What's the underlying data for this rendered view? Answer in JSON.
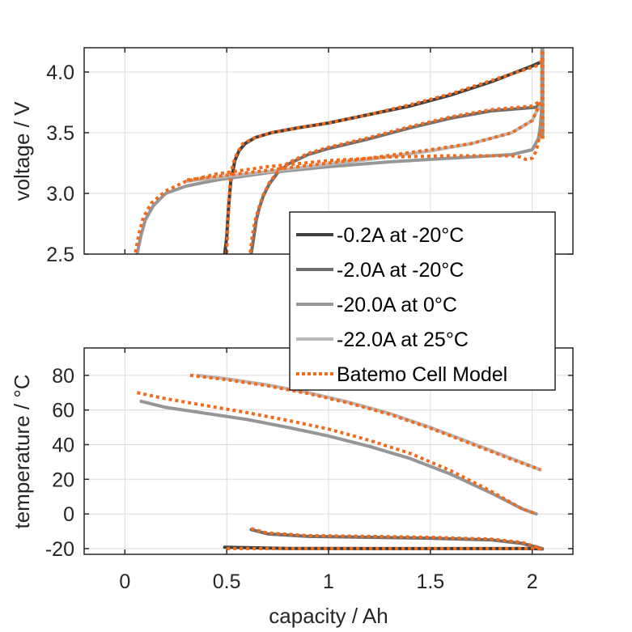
{
  "chart_data": [
    {
      "id": "voltage",
      "type": "line",
      "title": "",
      "xlabel": "",
      "ylabel": "voltage / V",
      "xlim": [
        -0.2,
        2.2
      ],
      "ylim": [
        2.5,
        4.2
      ],
      "xticks": [
        0,
        0.5,
        1,
        1.5,
        2
      ],
      "xtick_labels": [
        "",
        "",
        "",
        "",
        ""
      ],
      "yticks": [
        2.5,
        3.0,
        3.5,
        4.0
      ],
      "ytick_labels": [
        "2.5",
        "3.0",
        "3.5",
        "4.0"
      ],
      "grid": true,
      "series": [
        {
          "name": "-0.2A at -20°C",
          "role": "measured",
          "color": "#404040",
          "x": [
            2.04,
            2.0,
            1.8,
            1.6,
            1.4,
            1.2,
            1.0,
            0.85,
            0.72,
            0.64,
            0.59,
            0.56,
            0.54,
            0.53,
            0.52,
            0.515,
            0.51,
            0.505,
            0.5,
            0.49
          ],
          "y": [
            4.08,
            4.05,
            3.92,
            3.81,
            3.72,
            3.65,
            3.58,
            3.54,
            3.5,
            3.46,
            3.41,
            3.35,
            3.27,
            3.18,
            3.1,
            3.0,
            2.9,
            2.78,
            2.64,
            2.5
          ]
        },
        {
          "name": "-2.0A at -20°C",
          "role": "measured",
          "color": "#6e6e6e",
          "x": [
            2.04,
            2.02,
            1.95,
            1.8,
            1.6,
            1.4,
            1.2,
            1.0,
            0.9,
            0.8,
            0.75,
            0.71,
            0.68,
            0.66,
            0.645,
            0.635,
            0.62
          ],
          "y": [
            3.74,
            3.71,
            3.7,
            3.68,
            3.62,
            3.54,
            3.45,
            3.37,
            3.32,
            3.24,
            3.17,
            3.08,
            2.98,
            2.88,
            2.78,
            2.66,
            2.5
          ]
        },
        {
          "name": "-20.0A at 0°C",
          "role": "measured",
          "color": "#969696",
          "x": [
            2.05,
            2.05,
            2.04,
            2.03,
            2.0,
            1.9,
            1.6,
            1.3,
            1.0,
            0.7,
            0.45,
            0.3,
            0.2,
            0.14,
            0.1,
            0.08,
            0.07,
            0.06
          ],
          "y": [
            4.2,
            3.78,
            3.55,
            3.45,
            3.36,
            3.32,
            3.29,
            3.26,
            3.22,
            3.17,
            3.11,
            3.06,
            3.0,
            2.9,
            2.78,
            2.66,
            2.58,
            2.5
          ]
        },
        {
          "name": "-22.0A at 25°C",
          "role": "measured",
          "color": "#b9b9b9",
          "x": [
            2.05,
            2.04,
            2.02,
            2.0,
            1.9,
            1.7,
            1.5,
            1.2,
            0.9,
            0.7,
            0.5,
            0.3
          ],
          "y": [
            3.78,
            3.72,
            3.67,
            3.6,
            3.5,
            3.41,
            3.35,
            3.28,
            3.22,
            3.18,
            3.14,
            3.1
          ]
        },
        {
          "name": "Batemo Cell Model",
          "role": "model",
          "color": "#f26a1b",
          "dotted": true,
          "x": [
            2.05,
            2.05
          ],
          "y": [
            3.45,
            4.2
          ]
        }
      ]
    },
    {
      "id": "temperature",
      "type": "line",
      "title": "",
      "xlabel": "capacity / Ah",
      "ylabel": "temperature / °C",
      "xlim": [
        -0.2,
        2.2
      ],
      "ylim": [
        -23.3,
        95.8
      ],
      "xticks": [
        0,
        0.5,
        1,
        1.5,
        2
      ],
      "xtick_labels": [
        "0",
        "0.5",
        "1",
        "1.5",
        "2"
      ],
      "yticks": [
        -20,
        0,
        20,
        40,
        60,
        80
      ],
      "ytick_labels": [
        "-20",
        "0",
        "20",
        "40",
        "60",
        "80"
      ],
      "grid": true,
      "series": [
        {
          "name": "-0.2A at -20°C",
          "role": "measured",
          "color": "#404040",
          "x": [
            0.49,
            0.8,
            1.2,
            1.6,
            2.0,
            2.05
          ],
          "y": [
            -19.2,
            -19.9,
            -20.0,
            -20.0,
            -20.0,
            -20.2
          ]
        },
        {
          "name": "-2.0A at -20°C",
          "role": "measured",
          "color": "#6e6e6e",
          "x": [
            0.62,
            0.7,
            0.9,
            1.2,
            1.5,
            1.8,
            1.95,
            2.05
          ],
          "y": [
            -9,
            -11.5,
            -13,
            -13.5,
            -14,
            -15,
            -17,
            -20
          ]
        },
        {
          "name": "-20.0A at 0°C",
          "role": "measured",
          "color": "#969696",
          "x": [
            0.08,
            0.2,
            0.4,
            0.6,
            0.8,
            1.0,
            1.2,
            1.4,
            1.6,
            1.8,
            1.95,
            2.02
          ],
          "y": [
            65,
            61.5,
            58,
            54.5,
            50,
            45,
            39,
            32,
            23,
            12,
            3,
            0
          ]
        },
        {
          "name": "-22.0A at 25°C",
          "role": "measured",
          "color": "#b9b9b9",
          "x": [
            0.36,
            0.5,
            0.7,
            0.9,
            1.1,
            1.3,
            1.5,
            1.7,
            1.9,
            2.04
          ],
          "y": [
            80,
            78,
            74.5,
            70,
            64.5,
            58,
            50,
            41,
            32,
            25.5
          ]
        }
      ]
    }
  ],
  "model_overlay": {
    "color": "#f26a1b",
    "voltage": [
      {
        "x": [
          2.05,
          2.02,
          1.8,
          1.6,
          1.4,
          1.2,
          1.0,
          0.85,
          0.72,
          0.64,
          0.58,
          0.55,
          0.53,
          0.52,
          0.515,
          0.51,
          0.505,
          0.5
        ],
        "y": [
          4.09,
          4.05,
          3.93,
          3.82,
          3.73,
          3.65,
          3.58,
          3.54,
          3.5,
          3.46,
          3.41,
          3.33,
          3.24,
          3.14,
          3.04,
          2.9,
          2.72,
          2.5
        ]
      },
      {
        "x": [
          2.03,
          2.0,
          1.8,
          1.6,
          1.4,
          1.2,
          1.0,
          0.9,
          0.8,
          0.75,
          0.71,
          0.68,
          0.66,
          0.64,
          0.625,
          0.615
        ],
        "y": [
          3.75,
          3.72,
          3.69,
          3.63,
          3.55,
          3.46,
          3.38,
          3.33,
          3.25,
          3.18,
          3.09,
          2.99,
          2.89,
          2.78,
          2.64,
          2.5
        ]
      },
      {
        "x": [
          2.04,
          2.02,
          2.0,
          1.97,
          1.94,
          1.9,
          1.85,
          1.6,
          1.3,
          1.0,
          0.7,
          0.45,
          0.3,
          0.2,
          0.13,
          0.09,
          0.07,
          0.05
        ],
        "y": [
          3.5,
          3.35,
          3.29,
          3.28,
          3.3,
          3.31,
          3.31,
          3.31,
          3.3,
          3.27,
          3.22,
          3.16,
          3.1,
          3.02,
          2.92,
          2.8,
          2.67,
          2.5
        ]
      },
      {
        "x": [
          2.04,
          2.0,
          1.9,
          1.7,
          1.5,
          1.2,
          0.9,
          0.7,
          0.5,
          0.3
        ],
        "y": [
          3.75,
          3.6,
          3.5,
          3.41,
          3.36,
          3.29,
          3.23,
          3.19,
          3.15,
          3.11
        ]
      }
    ],
    "temperature": [
      {
        "x": [
          0.5,
          0.8,
          1.2,
          1.6,
          2.0,
          2.05
        ],
        "y": [
          -20,
          -20,
          -20,
          -20,
          -20,
          -20.3
        ]
      },
      {
        "x": [
          0.62,
          0.7,
          0.9,
          1.2,
          1.5,
          1.8,
          1.95,
          2.05
        ],
        "y": [
          -8.5,
          -11,
          -12.5,
          -13,
          -13.5,
          -14.5,
          -16.5,
          -20
        ]
      },
      {
        "x": [
          0.06,
          0.2,
          0.4,
          0.6,
          0.8,
          1.0,
          1.2,
          1.4,
          1.6,
          1.8,
          1.95,
          2.02
        ],
        "y": [
          70,
          66.5,
          62.5,
          58.5,
          54,
          49,
          42.5,
          35,
          25,
          13,
          3,
          0
        ]
      },
      {
        "x": [
          0.32,
          0.5,
          0.7,
          0.9,
          1.1,
          1.3,
          1.5,
          1.7,
          1.9,
          2.04
        ],
        "y": [
          80,
          77.5,
          74,
          69.5,
          64,
          57.5,
          49.5,
          40.5,
          31.5,
          25.5
        ]
      }
    ]
  },
  "legend": {
    "placement": "center-right",
    "entries": [
      {
        "label": "-0.2A at -20°C",
        "color": "#404040",
        "style": "solid"
      },
      {
        "label": "-2.0A at -20°C",
        "color": "#6e6e6e",
        "style": "solid"
      },
      {
        "label": "-20.0A at 0°C",
        "color": "#969696",
        "style": "solid"
      },
      {
        "label": "-22.0A at 25°C",
        "color": "#b9b9b9",
        "style": "solid"
      },
      {
        "label": "Batemo Cell Model",
        "color": "#f26a1b",
        "style": "dotted"
      }
    ]
  }
}
